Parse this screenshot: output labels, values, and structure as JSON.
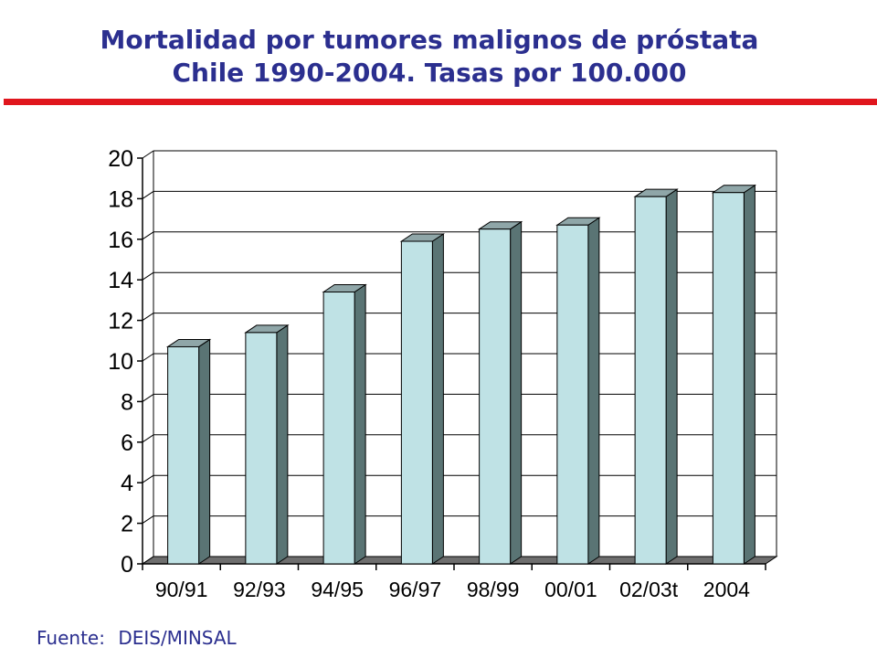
{
  "title_line1": "Mortalidad por tumores malignos de próstata",
  "title_line2": "Chile 1990-2004. Tasas por 100.000",
  "source_label": "Fuente:",
  "source_value": "DEIS/MINSAL",
  "colors": {
    "title": "#2b2f8f",
    "rule": "#e0161d",
    "bar_front": "#bfe2e5",
    "bar_side": "#5a7474",
    "bar_top": "#8fa6a8",
    "floor": "#6e6e6e"
  },
  "chart_data": {
    "type": "bar",
    "categories": [
      "90/91",
      "92/93",
      "94/95",
      "96/97",
      "98/99",
      "00/01",
      "02/03t",
      "2004"
    ],
    "values": [
      10.7,
      11.4,
      13.4,
      15.9,
      16.5,
      16.7,
      18.1,
      18.3
    ],
    "ylim": [
      0,
      20
    ],
    "yticks": [
      "0",
      "2",
      "4",
      "6",
      "8",
      "10",
      "12",
      "14",
      "16",
      "18",
      "20"
    ],
    "grid": true,
    "style": "3d-column"
  }
}
